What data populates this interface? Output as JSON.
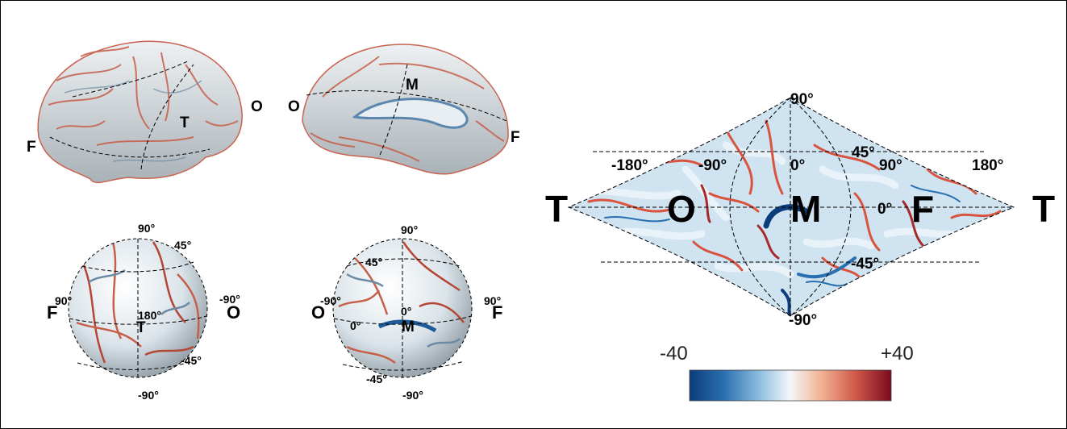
{
  "brain_lateral": {
    "labels": {
      "front": "F",
      "temporal": "T",
      "occipital": "O"
    }
  },
  "brain_medial": {
    "labels": {
      "occipital": "O",
      "medial": "M",
      "front": "F"
    }
  },
  "sphere_lateral": {
    "labels": {
      "lat_top": "90°",
      "lat_45": "45°",
      "lon_left": "90°",
      "lon_right": "-90°",
      "lon_center": "180°",
      "lat_m45": "-45°",
      "lat_bottom": "-90°",
      "front": "F",
      "temporal": "T",
      "occipital": "O"
    }
  },
  "sphere_medial": {
    "labels": {
      "lat_top": "90°",
      "lat_45": "45°",
      "lon_left": "-90°",
      "lon_right": "90°",
      "lon_center": "0°",
      "lat_m45": "-45°",
      "lat_bottom": "-90°",
      "occipital": "O",
      "medial": "M",
      "front": "F",
      "zero_small": "0°"
    }
  },
  "map": {
    "labels": {
      "lat_top": "90°",
      "lat_45": "45°",
      "lat_0": "0°",
      "lat_m45": "-45°",
      "lat_bottom": "-90°",
      "lon_m180": "-180°",
      "lon_m90": "-90°",
      "lon_0": "0°",
      "lon_90": "90°",
      "lon_180": "180°"
    },
    "regions": {
      "left_T": "T",
      "O": "O",
      "M": "M",
      "F": "F",
      "right_T": "T"
    }
  },
  "colorbar": {
    "min_label": "-40",
    "max_label": "+40",
    "colors": [
      "#0b3d7a",
      "#2a6fb0",
      "#8fbfe0",
      "#f4f7f9",
      "#f2b394",
      "#cf5546",
      "#7a0a20"
    ]
  }
}
